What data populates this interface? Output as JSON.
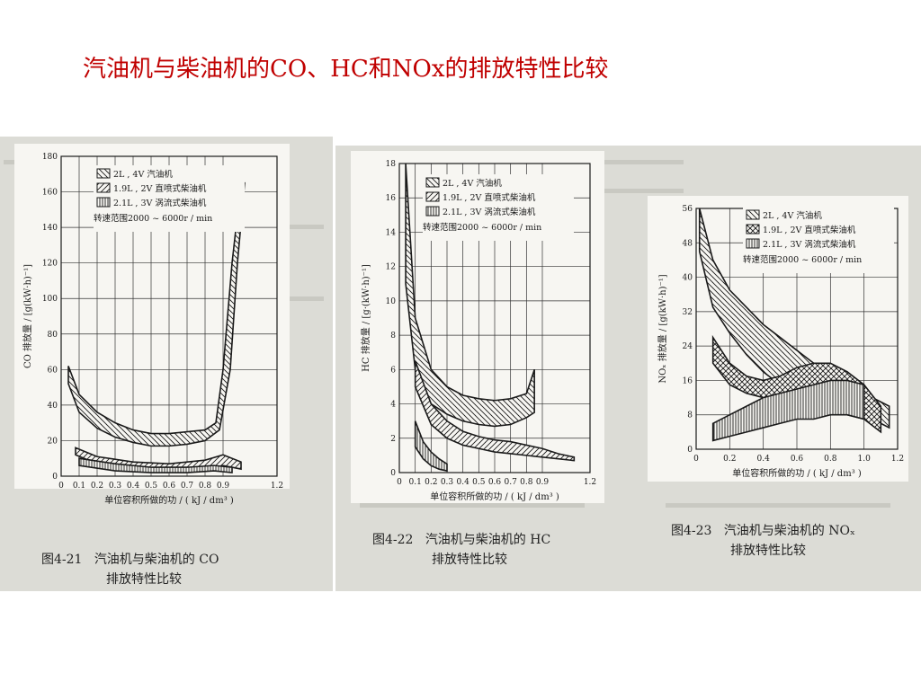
{
  "slide_title": "汽油机与柴油机的CO、HC和NOx的排放特性比较",
  "colors": {
    "title": "#c00000",
    "ink": "#1a1a1a",
    "grid": "#333333",
    "paper": "#f7f6f2",
    "scan_bg": "#dcdcd6"
  },
  "chart_data": [
    {
      "type": "area",
      "figure_label": "图4-21",
      "caption_line1": "汽油机与柴油机的 CO",
      "caption_line2": "排放特性比较",
      "ylabel": "CO 排放量 / [g(kW·h)⁻¹]",
      "xlabel": "单位容积所做的功 / ( kJ / dm³ )",
      "xlim": [
        0,
        1.2
      ],
      "ylim": [
        0,
        180
      ],
      "xticks": [
        0,
        0.1,
        0.2,
        0.3,
        0.4,
        0.5,
        0.6,
        0.7,
        0.8,
        0.9,
        1.2
      ],
      "xtick_labels": [
        "0",
        "0.1",
        "0.2",
        "0.3",
        "0.4",
        "0.5",
        "0.6",
        "0.7",
        "0.8",
        "0.9",
        "1.2"
      ],
      "yticks": [
        0,
        20,
        40,
        60,
        80,
        100,
        120,
        140,
        160,
        180
      ],
      "ytick_labels": [
        "0",
        "20",
        "40",
        "60",
        "80",
        "100",
        "120",
        "140",
        "160",
        "180"
      ],
      "legend": [
        "2L , 4V 汽油机",
        "1.9L , 2V 直喷式柴油机",
        "2.1L , 3V 涡流式柴油机"
      ],
      "legend_note": "转速范围2000 ~ 6000r / min",
      "grid": true,
      "legend_position": "top-right",
      "series": [
        {
          "name": "2L , 4V 汽油机",
          "hatch": "back",
          "upper": [
            [
              0.04,
              62
            ],
            [
              0.1,
              46
            ],
            [
              0.2,
              36
            ],
            [
              0.3,
              30
            ],
            [
              0.4,
              26
            ],
            [
              0.5,
              24
            ],
            [
              0.6,
              24
            ],
            [
              0.7,
              25
            ],
            [
              0.8,
              26
            ],
            [
              0.86,
              30
            ],
            [
              0.9,
              60
            ],
            [
              0.95,
              120
            ],
            [
              1.0,
              165
            ]
          ],
          "lower": [
            [
              0.04,
              52
            ],
            [
              0.1,
              36
            ],
            [
              0.2,
              27
            ],
            [
              0.3,
              22
            ],
            [
              0.4,
              19
            ],
            [
              0.5,
              17
            ],
            [
              0.6,
              17
            ],
            [
              0.7,
              18
            ],
            [
              0.8,
              20
            ],
            [
              0.88,
              26
            ],
            [
              0.94,
              60
            ],
            [
              0.98,
              120
            ],
            [
              1.02,
              165
            ]
          ]
        },
        {
          "name": "1.9L , 2V 直喷式柴油机",
          "hatch": "forward",
          "upper": [
            [
              0.08,
              16
            ],
            [
              0.2,
              11
            ],
            [
              0.4,
              8
            ],
            [
              0.6,
              7
            ],
            [
              0.8,
              9
            ],
            [
              0.9,
              12
            ],
            [
              1.0,
              8
            ]
          ],
          "lower": [
            [
              0.08,
              12
            ],
            [
              0.2,
              7
            ],
            [
              0.4,
              4
            ],
            [
              0.6,
              3
            ],
            [
              0.8,
              4
            ],
            [
              0.9,
              6
            ],
            [
              1.0,
              4
            ]
          ]
        },
        {
          "name": "2.1L , 3V 涡流式柴油机",
          "hatch": "vertical",
          "upper": [
            [
              0.1,
              10
            ],
            [
              0.3,
              7
            ],
            [
              0.5,
              5
            ],
            [
              0.7,
              5
            ],
            [
              0.85,
              6
            ],
            [
              0.95,
              5
            ]
          ],
          "lower": [
            [
              0.1,
              6
            ],
            [
              0.3,
              3
            ],
            [
              0.5,
              2
            ],
            [
              0.7,
              2
            ],
            [
              0.85,
              3
            ],
            [
              0.95,
              2
            ]
          ]
        }
      ]
    },
    {
      "type": "area",
      "figure_label": "图4-22",
      "caption_line1": "汽油机与柴油机的 HC",
      "caption_line2": "排放特性比较",
      "ylabel": "HC 排放量 / [g·(kW·h)⁻¹]",
      "xlabel": "单位容积所做的功 / ( kJ / dm³ )",
      "xlim": [
        0,
        1.2
      ],
      "ylim": [
        0,
        18
      ],
      "xticks": [
        0,
        0.1,
        0.2,
        0.3,
        0.4,
        0.5,
        0.6,
        0.7,
        0.8,
        0.9,
        1.2
      ],
      "xtick_labels": [
        "0",
        "0.1",
        "0.2",
        "0.3",
        "0.4",
        "0.5",
        "0.6",
        "0.7",
        "0.8",
        "0.9",
        "1.2"
      ],
      "yticks": [
        0,
        2,
        4,
        6,
        8,
        10,
        12,
        14,
        16,
        18
      ],
      "ytick_labels": [
        "0",
        "2",
        "4",
        "6",
        "8",
        "10",
        "12",
        "14",
        "16",
        "18"
      ],
      "legend": [
        "2L , 4V 汽油机",
        "1.9L , 2V 直喷式柴油机",
        "2.1L , 3V 涡流式柴油机"
      ],
      "legend_note": "转速范围2000 ~ 6000r / min",
      "grid": true,
      "legend_position": "top-right",
      "series": [
        {
          "name": "2L , 4V 汽油机",
          "hatch": "back",
          "upper": [
            [
              0.04,
              18
            ],
            [
              0.1,
              9
            ],
            [
              0.2,
              6
            ],
            [
              0.3,
              5
            ],
            [
              0.4,
              4.5
            ],
            [
              0.5,
              4.3
            ],
            [
              0.6,
              4.2
            ],
            [
              0.7,
              4.3
            ],
            [
              0.8,
              4.6
            ],
            [
              0.85,
              6
            ]
          ],
          "lower": [
            [
              0.04,
              11
            ],
            [
              0.1,
              6
            ],
            [
              0.2,
              4
            ],
            [
              0.3,
              3.4
            ],
            [
              0.4,
              3
            ],
            [
              0.5,
              2.8
            ],
            [
              0.6,
              2.7
            ],
            [
              0.7,
              2.8
            ],
            [
              0.8,
              3.2
            ],
            [
              0.85,
              3.5
            ]
          ]
        },
        {
          "name": "1.9L , 2V 直喷式柴油机",
          "hatch": "forward",
          "upper": [
            [
              0.1,
              6.5
            ],
            [
              0.2,
              4
            ],
            [
              0.3,
              3
            ],
            [
              0.4,
              2.4
            ],
            [
              0.5,
              2.1
            ],
            [
              0.6,
              1.9
            ],
            [
              0.7,
              1.8
            ],
            [
              0.8,
              1.6
            ],
            [
              0.9,
              1.4
            ],
            [
              1.0,
              1.1
            ],
            [
              1.1,
              0.9
            ]
          ],
          "lower": [
            [
              0.1,
              5
            ],
            [
              0.2,
              2.8
            ],
            [
              0.3,
              2
            ],
            [
              0.4,
              1.6
            ],
            [
              0.5,
              1.4
            ],
            [
              0.6,
              1.2
            ],
            [
              0.7,
              1.1
            ],
            [
              0.8,
              1.0
            ],
            [
              0.9,
              0.9
            ],
            [
              1.0,
              0.8
            ],
            [
              1.1,
              0.7
            ]
          ]
        },
        {
          "name": "2.1L , 3V 涡流式柴油机",
          "hatch": "vertical",
          "upper": [
            [
              0.1,
              3
            ],
            [
              0.15,
              1.8
            ],
            [
              0.2,
              1.2
            ],
            [
              0.25,
              0.8
            ],
            [
              0.3,
              0.5
            ]
          ],
          "lower": [
            [
              0.1,
              1.5
            ],
            [
              0.15,
              0.8
            ],
            [
              0.2,
              0.4
            ],
            [
              0.25,
              0.2
            ],
            [
              0.3,
              0.1
            ]
          ]
        }
      ]
    },
    {
      "type": "area",
      "figure_label": "图4-23",
      "caption_line1": "汽油机与柴油机的 NOₓ",
      "caption_line2": "排放特性比较",
      "ylabel": "NOₓ 排放量 / [g(kW·h)⁻¹]",
      "xlabel": "单位容积所做的功 / ( kJ / dm³ )",
      "xlim": [
        0,
        1.2
      ],
      "ylim": [
        0,
        56
      ],
      "xticks": [
        0,
        0.2,
        0.4,
        0.6,
        0.8,
        1.0,
        1.2
      ],
      "xtick_labels": [
        "0",
        "0.2",
        "0.4",
        "0.6",
        "0.8",
        "1.0",
        "1.2"
      ],
      "yticks": [
        0,
        8,
        16,
        24,
        32,
        40,
        48,
        56
      ],
      "ytick_labels": [
        "0",
        "8",
        "16",
        "24",
        "32",
        "40",
        "48",
        "56"
      ],
      "legend": [
        "2L , 4V 汽油机",
        "1.9L , 2V 直喷式柴油机",
        "2.1L , 3V 涡流式柴油机"
      ],
      "legend_note": "转速范围2000 ~ 6000r / min",
      "grid": true,
      "legend_position": "top-right",
      "series": [
        {
          "name": "2L , 4V 汽油机",
          "hatch": "back",
          "upper": [
            [
              0.02,
              56
            ],
            [
              0.1,
              44
            ],
            [
              0.2,
              37
            ],
            [
              0.3,
              33
            ],
            [
              0.4,
              29
            ],
            [
              0.5,
              26
            ],
            [
              0.6,
              23
            ],
            [
              0.7,
              20
            ],
            [
              0.8,
              17
            ],
            [
              0.9,
              15
            ],
            [
              1.0,
              13
            ],
            [
              1.1,
              11
            ],
            [
              1.15,
              10
            ]
          ],
          "lower": [
            [
              0.02,
              46
            ],
            [
              0.1,
              33
            ],
            [
              0.2,
              27
            ],
            [
              0.3,
              22
            ],
            [
              0.4,
              18
            ],
            [
              0.5,
              15
            ],
            [
              0.6,
              13
            ],
            [
              0.7,
              11
            ],
            [
              0.8,
              9
            ],
            [
              0.9,
              8
            ],
            [
              1.0,
              7
            ],
            [
              1.1,
              6
            ],
            [
              1.15,
              5
            ]
          ]
        },
        {
          "name": "1.9L , 2V 直喷式柴油机",
          "hatch": "cross",
          "upper": [
            [
              0.1,
              26
            ],
            [
              0.2,
              20
            ],
            [
              0.3,
              17
            ],
            [
              0.4,
              16
            ],
            [
              0.5,
              17
            ],
            [
              0.6,
              19
            ],
            [
              0.7,
              20
            ],
            [
              0.8,
              20
            ],
            [
              0.9,
              18
            ],
            [
              1.0,
              15
            ],
            [
              1.1,
              10
            ]
          ],
          "lower": [
            [
              0.1,
              20
            ],
            [
              0.2,
              15
            ],
            [
              0.3,
              13
            ],
            [
              0.4,
              12
            ],
            [
              0.5,
              11
            ],
            [
              0.6,
              11
            ],
            [
              0.7,
              11
            ],
            [
              0.8,
              10
            ],
            [
              0.9,
              9
            ],
            [
              1.0,
              7
            ],
            [
              1.1,
              4
            ]
          ]
        },
        {
          "name": "2.1L , 3V 涡流式柴油机",
          "hatch": "vertical",
          "upper": [
            [
              0.1,
              6
            ],
            [
              0.2,
              8
            ],
            [
              0.3,
              10
            ],
            [
              0.4,
              12
            ],
            [
              0.5,
              13
            ],
            [
              0.6,
              14
            ],
            [
              0.7,
              15
            ],
            [
              0.8,
              16
            ],
            [
              0.9,
              16
            ],
            [
              1.0,
              15
            ]
          ],
          "lower": [
            [
              0.1,
              2
            ],
            [
              0.2,
              3
            ],
            [
              0.3,
              4
            ],
            [
              0.4,
              5
            ],
            [
              0.5,
              6
            ],
            [
              0.6,
              7
            ],
            [
              0.7,
              7
            ],
            [
              0.8,
              8
            ],
            [
              0.9,
              8
            ],
            [
              1.0,
              7
            ]
          ]
        }
      ]
    }
  ]
}
